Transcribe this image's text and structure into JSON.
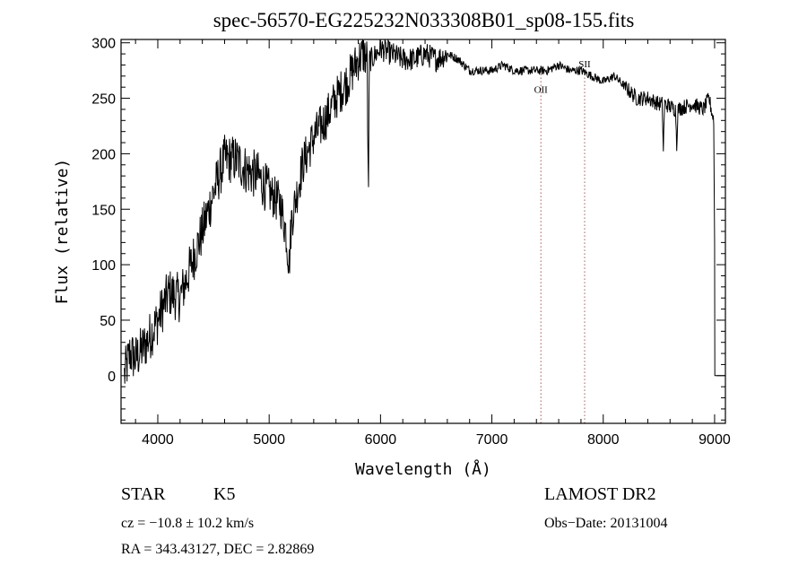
{
  "chart_data": {
    "type": "line",
    "title": "spec-56570-EG225232N033308B01_sp08-155.fits",
    "xlabel": "Wavelength (Å)",
    "ylabel": "Flux (relative)",
    "xlim": [
      3670,
      9097
    ],
    "ylim": [
      -43,
      303
    ],
    "xticks": [
      4000,
      5000,
      6000,
      7000,
      8000,
      9000
    ],
    "yticks": [
      0,
      50,
      100,
      150,
      200,
      250,
      300
    ],
    "x_minor_step": 200,
    "y_minor_step": 10,
    "grid": false,
    "lines": [
      {
        "label": "OII",
        "x": 7440
      },
      {
        "label": "SII",
        "x": 7833
      }
    ],
    "line_color": "#800000",
    "series": [
      {
        "name": "spectrum",
        "color": "#000000",
        "points": [
          [
            3700,
            0
          ],
          [
            3750,
            20
          ],
          [
            3800,
            15
          ],
          [
            3900,
            30
          ],
          [
            4000,
            50
          ],
          [
            4100,
            75
          ],
          [
            4200,
            70
          ],
          [
            4300,
            100
          ],
          [
            4400,
            130
          ],
          [
            4500,
            165
          ],
          [
            4600,
            195
          ],
          [
            4700,
            195
          ],
          [
            4800,
            185
          ],
          [
            4900,
            180
          ],
          [
            5000,
            165
          ],
          [
            5100,
            155
          ],
          [
            5150,
            130
          ],
          [
            5180,
            100
          ],
          [
            5200,
            140
          ],
          [
            5300,
            190
          ],
          [
            5400,
            215
          ],
          [
            5500,
            230
          ],
          [
            5600,
            250
          ],
          [
            5700,
            265
          ],
          [
            5800,
            285
          ],
          [
            5850,
            290
          ],
          [
            5880,
            285
          ],
          [
            5890,
            152
          ],
          [
            5900,
            285
          ],
          [
            5920,
            285
          ],
          [
            6000,
            295
          ],
          [
            6100,
            290
          ],
          [
            6200,
            285
          ],
          [
            6300,
            285
          ],
          [
            6400,
            290
          ],
          [
            6500,
            285
          ],
          [
            6600,
            290
          ],
          [
            6700,
            285
          ],
          [
            6800,
            275
          ],
          [
            6900,
            275
          ],
          [
            7000,
            275
          ],
          [
            7100,
            280
          ],
          [
            7200,
            275
          ],
          [
            7300,
            275
          ],
          [
            7400,
            275
          ],
          [
            7500,
            275
          ],
          [
            7600,
            280
          ],
          [
            7700,
            275
          ],
          [
            7800,
            275
          ],
          [
            7900,
            270
          ],
          [
            8000,
            265
          ],
          [
            8100,
            270
          ],
          [
            8200,
            260
          ],
          [
            8300,
            250
          ],
          [
            8400,
            250
          ],
          [
            8500,
            245
          ],
          [
            8530,
            245
          ],
          [
            8540,
            202
          ],
          [
            8550,
            245
          ],
          [
            8650,
            240
          ],
          [
            8660,
            207
          ],
          [
            8670,
            240
          ],
          [
            8800,
            245
          ],
          [
            8900,
            240
          ],
          [
            8950,
            250
          ],
          [
            8980,
            235
          ],
          [
            8995,
            230
          ],
          [
            9000,
            120
          ],
          [
            9002,
            0
          ]
        ]
      }
    ]
  },
  "info": {
    "obj_class": "STAR",
    "subclass": "K5",
    "survey": "LAMOST DR2",
    "cz": "cz = −10.8 ± 10.2 km/s",
    "obs_date": "Obs−Date: 20131004",
    "radec": "RA = 343.43127, DEC =   2.82869"
  }
}
